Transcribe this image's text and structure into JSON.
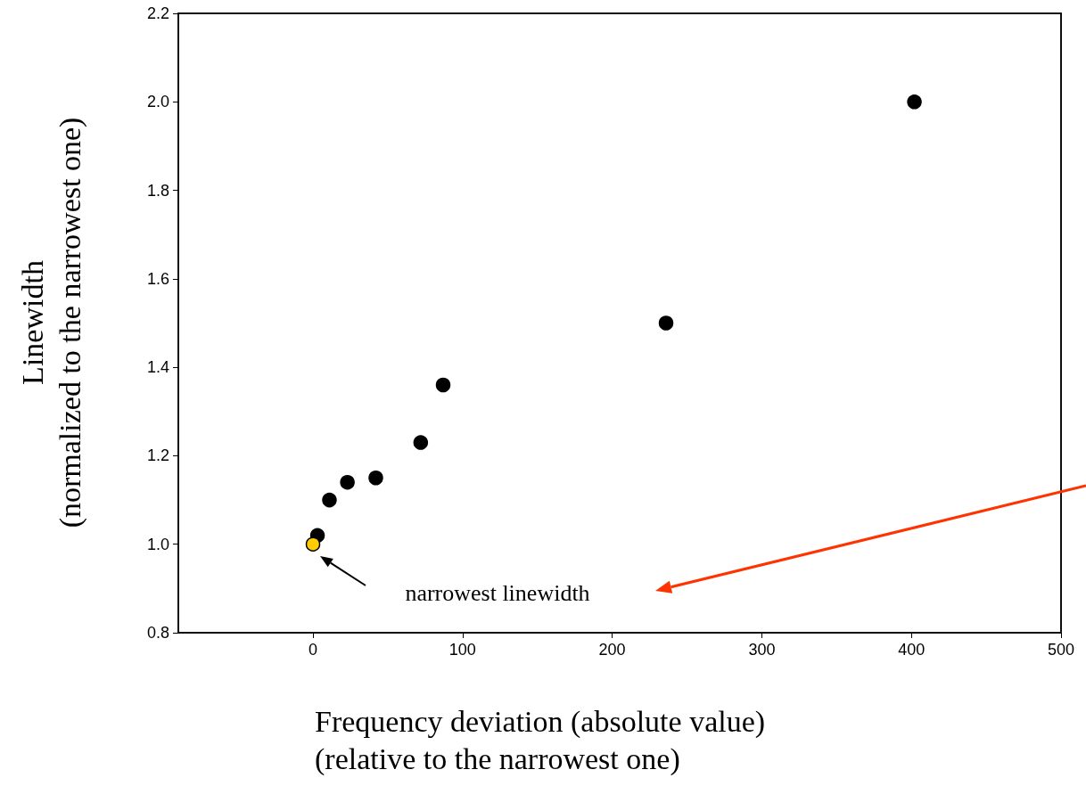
{
  "chart_data": {
    "type": "scatter",
    "xlabel": "Frequency deviation (absolute value)\n(relative to the narrowest one)",
    "ylabel": "Linewidth\n(normalized to the narrowest one)",
    "xlim": [
      -90,
      500
    ],
    "xticks": [
      0,
      100,
      200,
      300,
      400,
      500
    ],
    "ylim": [
      0.8,
      2.2
    ],
    "yticks": [
      0.8,
      {
        "value": 1,
        "label": "1.0"
      },
      1.2,
      1.4,
      1.6,
      1.8,
      {
        "value": 2,
        "label": "2.0"
      },
      2.2
    ],
    "series": [
      {
        "color": "#000000",
        "x": [
          3,
          11,
          23,
          42,
          72,
          87,
          236,
          402
        ],
        "values": [
          1.02,
          1.1,
          1.14,
          1.15,
          1.23,
          1.36,
          1.5,
          2.0
        ]
      },
      {
        "color": "#ffcc00",
        "x": [
          0
        ],
        "values": [
          1.0
        ]
      }
    ],
    "annotations": [
      "narrowest linewidth"
    ],
    "marker": "circle",
    "grid": false
  }
}
